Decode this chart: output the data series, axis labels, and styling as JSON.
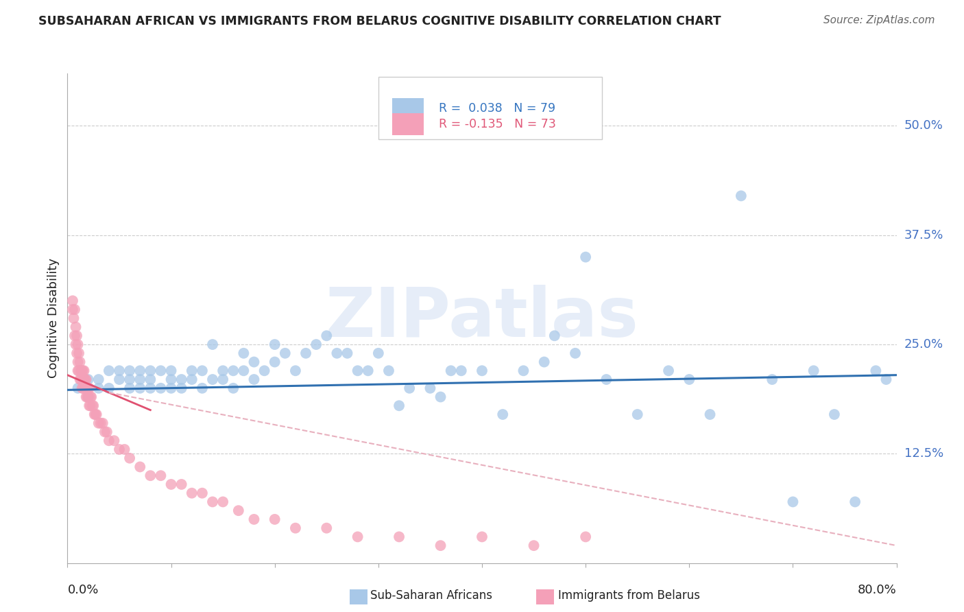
{
  "title": "SUBSAHARAN AFRICAN VS IMMIGRANTS FROM BELARUS COGNITIVE DISABILITY CORRELATION CHART",
  "source": "Source: ZipAtlas.com",
  "ylabel": "Cognitive Disability",
  "ytick_labels": [
    "12.5%",
    "25.0%",
    "37.5%",
    "50.0%"
  ],
  "ytick_values": [
    0.125,
    0.25,
    0.375,
    0.5
  ],
  "xlim": [
    0.0,
    0.8
  ],
  "ylim": [
    0.0,
    0.56
  ],
  "color_blue": "#a8c8e8",
  "color_pink": "#f4a0b8",
  "color_blue_line": "#3070b0",
  "color_pink_line": "#e05070",
  "color_pink_dashed": "#e8b0be",
  "watermark": "ZIPatlas",
  "legend_label1": "Sub-Saharan Africans",
  "legend_label2": "Immigrants from Belarus",
  "blue_scatter_x": [
    0.01,
    0.02,
    0.02,
    0.03,
    0.03,
    0.04,
    0.04,
    0.05,
    0.05,
    0.06,
    0.06,
    0.06,
    0.07,
    0.07,
    0.07,
    0.08,
    0.08,
    0.08,
    0.09,
    0.09,
    0.1,
    0.1,
    0.1,
    0.11,
    0.11,
    0.12,
    0.12,
    0.13,
    0.13,
    0.14,
    0.14,
    0.15,
    0.15,
    0.16,
    0.16,
    0.17,
    0.17,
    0.18,
    0.18,
    0.19,
    0.2,
    0.2,
    0.21,
    0.22,
    0.23,
    0.24,
    0.25,
    0.26,
    0.27,
    0.28,
    0.29,
    0.3,
    0.31,
    0.32,
    0.33,
    0.35,
    0.36,
    0.37,
    0.38,
    0.4,
    0.42,
    0.44,
    0.46,
    0.47,
    0.49,
    0.5,
    0.52,
    0.55,
    0.58,
    0.6,
    0.62,
    0.65,
    0.68,
    0.7,
    0.72,
    0.74,
    0.76,
    0.78,
    0.79
  ],
  "blue_scatter_y": [
    0.2,
    0.21,
    0.19,
    0.21,
    0.2,
    0.22,
    0.2,
    0.21,
    0.22,
    0.21,
    0.2,
    0.22,
    0.21,
    0.2,
    0.22,
    0.21,
    0.22,
    0.2,
    0.22,
    0.2,
    0.21,
    0.2,
    0.22,
    0.21,
    0.2,
    0.22,
    0.21,
    0.22,
    0.2,
    0.21,
    0.25,
    0.22,
    0.21,
    0.22,
    0.2,
    0.24,
    0.22,
    0.23,
    0.21,
    0.22,
    0.25,
    0.23,
    0.24,
    0.22,
    0.24,
    0.25,
    0.26,
    0.24,
    0.24,
    0.22,
    0.22,
    0.24,
    0.22,
    0.18,
    0.2,
    0.2,
    0.19,
    0.22,
    0.22,
    0.22,
    0.17,
    0.22,
    0.23,
    0.26,
    0.24,
    0.35,
    0.21,
    0.17,
    0.22,
    0.21,
    0.17,
    0.42,
    0.21,
    0.07,
    0.22,
    0.17,
    0.07,
    0.22,
    0.21
  ],
  "pink_scatter_x": [
    0.005,
    0.005,
    0.006,
    0.007,
    0.007,
    0.008,
    0.008,
    0.009,
    0.009,
    0.01,
    0.01,
    0.01,
    0.011,
    0.011,
    0.012,
    0.012,
    0.013,
    0.013,
    0.014,
    0.014,
    0.015,
    0.015,
    0.015,
    0.016,
    0.016,
    0.017,
    0.017,
    0.018,
    0.018,
    0.019,
    0.019,
    0.02,
    0.02,
    0.021,
    0.021,
    0.022,
    0.022,
    0.023,
    0.024,
    0.025,
    0.026,
    0.027,
    0.028,
    0.03,
    0.032,
    0.034,
    0.036,
    0.038,
    0.04,
    0.045,
    0.05,
    0.055,
    0.06,
    0.07,
    0.08,
    0.09,
    0.1,
    0.11,
    0.12,
    0.13,
    0.14,
    0.15,
    0.165,
    0.18,
    0.2,
    0.22,
    0.25,
    0.28,
    0.32,
    0.36,
    0.4,
    0.45,
    0.5
  ],
  "pink_scatter_y": [
    0.29,
    0.3,
    0.28,
    0.29,
    0.26,
    0.27,
    0.25,
    0.26,
    0.24,
    0.25,
    0.23,
    0.22,
    0.24,
    0.22,
    0.23,
    0.21,
    0.22,
    0.21,
    0.22,
    0.2,
    0.22,
    0.21,
    0.2,
    0.21,
    0.22,
    0.21,
    0.2,
    0.21,
    0.19,
    0.2,
    0.19,
    0.2,
    0.19,
    0.2,
    0.18,
    0.19,
    0.18,
    0.19,
    0.18,
    0.18,
    0.17,
    0.17,
    0.17,
    0.16,
    0.16,
    0.16,
    0.15,
    0.15,
    0.14,
    0.14,
    0.13,
    0.13,
    0.12,
    0.11,
    0.1,
    0.1,
    0.09,
    0.09,
    0.08,
    0.08,
    0.07,
    0.07,
    0.06,
    0.05,
    0.05,
    0.04,
    0.04,
    0.03,
    0.03,
    0.02,
    0.03,
    0.02,
    0.03
  ],
  "blue_line_x": [
    0.0,
    0.8
  ],
  "blue_line_y": [
    0.198,
    0.215
  ],
  "pink_solid_line_x": [
    0.0,
    0.08
  ],
  "pink_solid_line_y": [
    0.215,
    0.175
  ],
  "pink_dashed_line_x": [
    0.04,
    0.8
  ],
  "pink_dashed_line_y": [
    0.195,
    0.02
  ]
}
